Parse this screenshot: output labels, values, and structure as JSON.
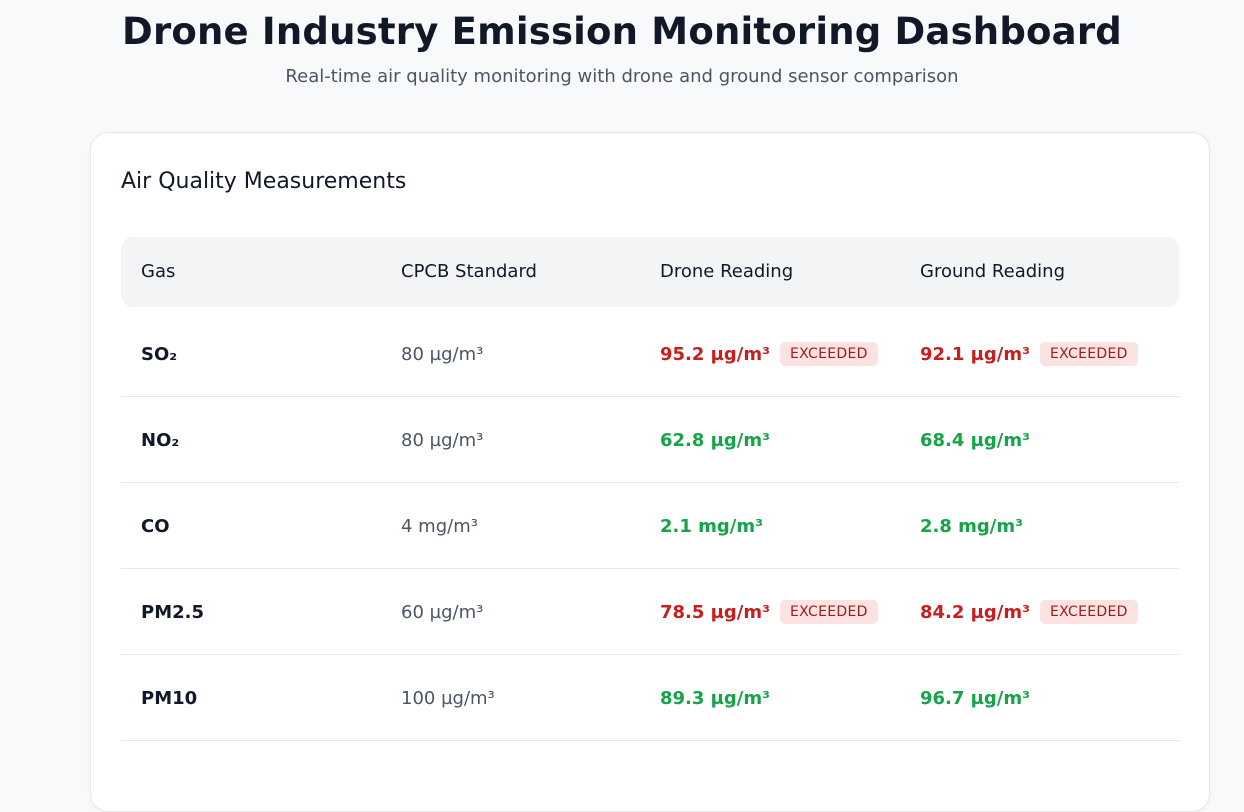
{
  "header": {
    "title": "Drone Industry Emission Monitoring Dashboard",
    "subtitle": "Real-time air quality monitoring with drone and ground sensor comparison"
  },
  "card": {
    "title": "Air Quality Measurements"
  },
  "table": {
    "columns": [
      "Gas",
      "CPCB Standard",
      "Drone Reading",
      "Ground Reading"
    ],
    "rows": [
      {
        "gas": "SO₂",
        "standard": "80 µg/m³",
        "drone": "95.2 µg/m³",
        "drone_status": "EXCEEDED",
        "ground": "92.1 µg/m³",
        "ground_status": "EXCEEDED"
      },
      {
        "gas": "NO₂",
        "standard": "80 µg/m³",
        "drone": "62.8 µg/m³",
        "drone_status": "",
        "ground": "68.4 µg/m³",
        "ground_status": ""
      },
      {
        "gas": "CO",
        "standard": "4 mg/m³",
        "drone": "2.1 mg/m³",
        "drone_status": "",
        "ground": "2.8 mg/m³",
        "ground_status": ""
      },
      {
        "gas": "PM2.5",
        "standard": "60 µg/m³",
        "drone": "78.5 µg/m³",
        "drone_status": "EXCEEDED",
        "ground": "84.2 µg/m³",
        "ground_status": "EXCEEDED"
      },
      {
        "gas": "PM10",
        "standard": "100 µg/m³",
        "drone": "89.3 µg/m³",
        "drone_status": "",
        "ground": "96.7 µg/m³",
        "ground_status": ""
      }
    ]
  },
  "colors": {
    "ok": "#16a34a",
    "exceeded": "#c81e1e",
    "badge_bg": "#fde2e2"
  }
}
